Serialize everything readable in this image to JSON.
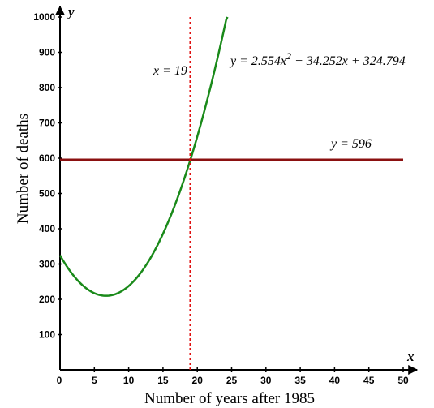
{
  "chart_data": {
    "type": "line",
    "title": "",
    "xlabel": "Number of years after 1985",
    "ylabel": "Number of deaths",
    "x_axis_letter": "x",
    "y_axis_letter": "y",
    "xlim": [
      0,
      50
    ],
    "ylim": [
      0,
      1000
    ],
    "x_ticks": [
      0,
      5,
      10,
      15,
      20,
      25,
      30,
      35,
      40,
      45,
      50
    ],
    "y_ticks": [
      100,
      200,
      300,
      400,
      500,
      600,
      700,
      800,
      900,
      1000
    ],
    "grid": false,
    "series": [
      {
        "kind": "quadratic",
        "coefficients": [
          2.554,
          -34.252,
          324.794
        ],
        "x_range": [
          0,
          24.4
        ],
        "color": "#1a8a1a"
      },
      {
        "kind": "horizontal",
        "value": 596,
        "x_range": [
          0,
          50
        ],
        "color": "#8b1010"
      },
      {
        "kind": "vertical",
        "value": 19,
        "y_range": [
          0,
          1000
        ],
        "color": "#e01010"
      }
    ],
    "annotations": {
      "quadratic_label": {
        "prefix": "y = 2.554x",
        "exponent": "2",
        "suffix": " − 34.252x + 324.794"
      },
      "horizontal_label": "y = 596",
      "vertical_label": "x = 19"
    }
  }
}
